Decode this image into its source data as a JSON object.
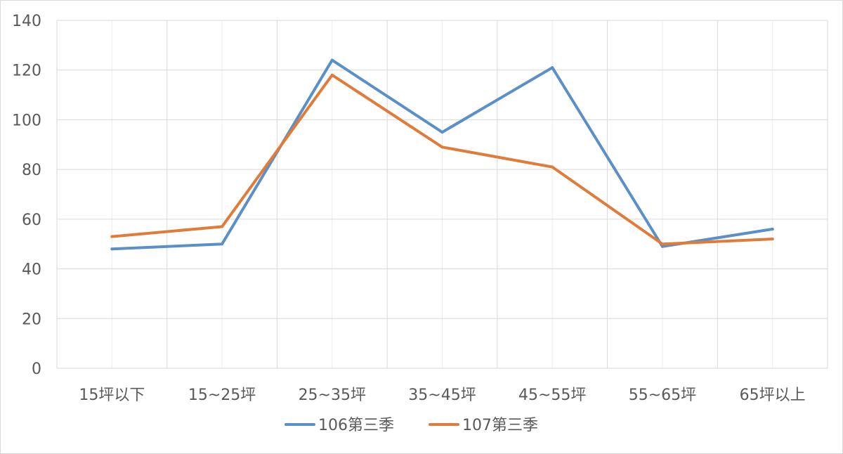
{
  "chart_data": {
    "type": "line",
    "title": "",
    "xlabel": "",
    "ylabel": "",
    "categories": [
      "15坪以下",
      "15~25坪",
      "25~35坪",
      "35~45坪",
      "45~55坪",
      "55~65坪",
      "65坪以上"
    ],
    "series": [
      {
        "name": "106第三季",
        "color": "#5b8fc7",
        "values": [
          48,
          50,
          124,
          95,
          121,
          49,
          56
        ]
      },
      {
        "name": "107第三季",
        "color": "#e07b39",
        "values": [
          53,
          57,
          118,
          89,
          81,
          50,
          52
        ]
      }
    ],
    "ylim": [
      0,
      140
    ],
    "yticks": [
      0,
      20,
      40,
      60,
      80,
      100,
      120,
      140
    ],
    "grid": true,
    "legend": "bottom"
  }
}
